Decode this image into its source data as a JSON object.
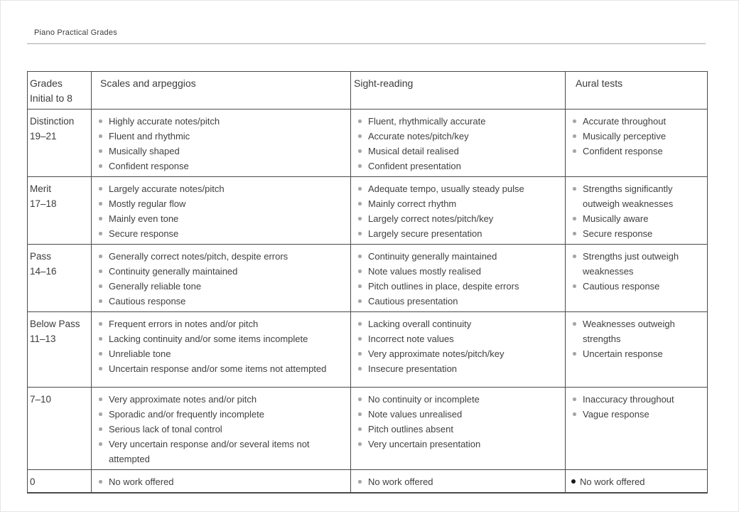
{
  "page": {
    "title": "Piano Practical Grades"
  },
  "colors": {
    "bullet_gray": "#a6a6a6",
    "bullet_black": "#1a1a1a",
    "text": "#3d3d3d",
    "table_border": "#4a4a4a",
    "header_rule": "#a9a9a9"
  },
  "table": {
    "header": {
      "grades_line1": "Grades",
      "grades_line2": "Initial to 8",
      "scales": "Scales and arpeggios",
      "sight_reading": "Sight-reading",
      "aural": "Aural tests"
    },
    "rows": [
      {
        "grade_lines": [
          "Distinction",
          "19–21"
        ],
        "cells": [
          {
            "items": [
              "Highly accurate notes/pitch",
              "Fluent and rhythmic",
              "Musically shaped",
              "Confident response"
            ]
          },
          {
            "items": [
              "Fluent, rhythmically accurate",
              "Accurate notes/pitch/key",
              "Musical detail realised",
              "Confident presentation"
            ]
          },
          {
            "items": [
              "Accurate throughout",
              "Musically perceptive",
              "Confident response"
            ]
          }
        ]
      },
      {
        "grade_lines": [
          "Merit",
          "17–18"
        ],
        "cells": [
          {
            "items": [
              "Largely accurate notes/pitch",
              "Mostly regular flow",
              "Mainly even tone",
              "Secure response"
            ]
          },
          {
            "items": [
              "Adequate tempo, usually steady pulse",
              "Mainly correct rhythm",
              "Largely correct notes/pitch/key",
              "Largely secure presentation"
            ]
          },
          {
            "items": [
              "Strengths significantly outweigh weaknesses",
              "Musically aware",
              "Secure response"
            ]
          }
        ]
      },
      {
        "grade_lines": [
          "Pass",
          "14–16"
        ],
        "cells": [
          {
            "items": [
              "Generally correct notes/pitch, despite errors",
              "Continuity generally maintained",
              "Generally reliable tone",
              "Cautious response"
            ]
          },
          {
            "items": [
              "Continuity generally maintained",
              "Note values mostly realised",
              "Pitch outlines in place, despite errors",
              "Cautious presentation"
            ]
          },
          {
            "items": [
              "Strengths just outweigh weaknesses",
              "Cautious response"
            ]
          }
        ]
      },
      {
        "grade_lines": [
          "Below Pass",
          "11–13"
        ],
        "cells": [
          {
            "items": [
              "Frequent errors in notes and/or pitch",
              "Lacking continuity and/or some items incomplete",
              "Unreliable tone",
              "Uncertain response and/or some items not attempted"
            ]
          },
          {
            "items": [
              "Lacking overall continuity",
              "Incorrect note values",
              "Very approximate notes/pitch/key",
              "Insecure presentation"
            ]
          },
          {
            "items": [
              "Weaknesses outweigh strengths",
              "Uncertain response"
            ]
          }
        ]
      },
      {
        "grade_lines": [
          "7–10"
        ],
        "cells": [
          {
            "items": [
              "Very approximate notes and/or pitch",
              "Sporadic and/or frequently incomplete",
              "Serious lack of tonal control",
              "Very uncertain response and/or several items not attempted"
            ]
          },
          {
            "items": [
              "No continuity or incomplete",
              "Note values unrealised",
              "Pitch outlines absent",
              "Very uncertain presentation"
            ]
          },
          {
            "items": [
              "Inaccuracy throughout",
              "Vague response"
            ]
          }
        ]
      },
      {
        "grade_lines": [
          "0"
        ],
        "cells": [
          {
            "items": [
              "No work offered"
            ]
          },
          {
            "items": [
              "No work offered"
            ]
          },
          {
            "items": [
              "No work offered"
            ],
            "bullet": "black"
          }
        ]
      }
    ]
  }
}
